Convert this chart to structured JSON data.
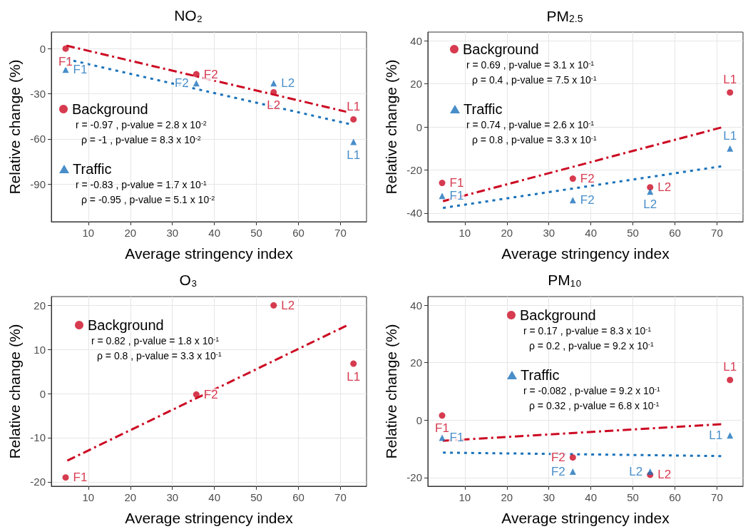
{
  "chart_data": [
    {
      "type": "scatter",
      "title": "NO₂",
      "xlabel": "Average stringency index",
      "ylabel": "Relative change (%)",
      "xlim": [
        1.2,
        76.2
      ],
      "xticks": [
        10,
        20,
        30,
        40,
        50,
        60,
        70
      ],
      "ylim": [
        -115,
        11
      ],
      "yticks": [
        -90,
        -60,
        -30,
        0
      ],
      "grid": true,
      "legend": "left",
      "annotations": [
        "r = -0.97 , p-value = 2.8 x 10$^{-2}$",
        "ρ = -1 , p-value = 8.3 x 10$^{-2}$",
        "r = -0.83 , p-value = 1.7 x 10$^{-1}$",
        "ρ = -0.95 , p-value = 5.1 x 10$^{-2}$"
      ],
      "series": [
        {
          "name": "Background",
          "color": "#cc0a23",
          "marker": "circle",
          "x": [
            4.6,
            35.7,
            54.1,
            73.1
          ],
          "values": [
            0,
            -17,
            -29,
            -47
          ],
          "value_labels": [
            "F1",
            "F2",
            "L2",
            "L1"
          ]
        },
        {
          "name": "Traffic",
          "color": "#1a72bb",
          "marker": "triangle",
          "x": [
            4.6,
            35.7,
            54.1,
            73.1
          ],
          "values": [
            -14,
            -23,
            -23,
            -62
          ],
          "value_labels": [
            "F1",
            "F2",
            "L2",
            "L1"
          ]
        },
        {
          "type": "line",
          "color": "#cc0a23",
          "line_style": "dashed",
          "marker": "none",
          "x": [
            4.8,
            71.5
          ],
          "values": [
            2,
            -42
          ]
        },
        {
          "type": "line",
          "color": "#1a72bb",
          "line_style": "dotted",
          "marker": "none",
          "x": [
            4.8,
            72
          ],
          "values": [
            -7,
            -50
          ]
        }
      ]
    },
    {
      "type": "scatter",
      "title": "PM$_{2.5}$",
      "xlabel": "Average stringency index",
      "ylabel": "Relative change (%)",
      "xlim": [
        1.2,
        76.2
      ],
      "xticks": [
        10,
        20,
        30,
        40,
        50,
        60,
        70
      ],
      "ylim": [
        -44,
        44
      ],
      "yticks": [
        -40,
        -20,
        0,
        20,
        40
      ],
      "grid": true,
      "legend": "top left",
      "annotations": [
        "r = 0.69 , p-value = 3.1 x 10$^{-1}$",
        "ρ = 0.4 , p-value = 7.5 x 10$^{-1}$",
        "r = 0.74 , p-value = 2.6 x 10$^{-1}$",
        "ρ = 0.8 , p-value = 3.3 x 10$^{-1}$"
      ],
      "series": [
        {
          "name": "Background",
          "color": "#cc0a23",
          "marker": "circle",
          "x": [
            4.6,
            35.7,
            54.1,
            73.1
          ],
          "values": [
            -26,
            -24,
            -28,
            16
          ],
          "value_labels": [
            "F1",
            "F2",
            "L2",
            "L1"
          ]
        },
        {
          "name": "Traffic",
          "color": "#1a72bb",
          "marker": "triangle",
          "x": [
            4.6,
            35.7,
            54.1,
            73.1
          ],
          "values": [
            -32,
            -34,
            -30,
            -10
          ],
          "value_labels": [
            "F1",
            "F2",
            "L2",
            "L1"
          ]
        },
        {
          "type": "line",
          "color": "#cc0a23",
          "line_style": "dashed",
          "marker": "none",
          "x": [
            4.8,
            71
          ],
          "values": [
            -34.5,
            -0.3
          ]
        },
        {
          "type": "line",
          "color": "#1a72bb",
          "line_style": "dotted",
          "marker": "none",
          "x": [
            4.8,
            71
          ],
          "values": [
            -37.6,
            -18.3
          ]
        }
      ]
    },
    {
      "type": "scatter",
      "title": "O₃",
      "xlabel": "Average stringency index",
      "ylabel": "Relative change (%)",
      "xlim": [
        1.2,
        76.2
      ],
      "xticks": [
        10,
        20,
        30,
        40,
        50,
        60,
        70
      ],
      "ylim": [
        -21,
        22
      ],
      "yticks": [
        -20,
        -10,
        0,
        10,
        20
      ],
      "grid": true,
      "legend": "top left",
      "annotations": [
        "r = 0.82 , p-value = 1.8 x 10$^{-1}$",
        "ρ = 0.8 , p-value = 3.3 x 10$^{-1}$"
      ],
      "series": [
        {
          "name": "Background",
          "color": "#cc0a23",
          "marker": "circle",
          "x": [
            4.6,
            35.7,
            54.1,
            73.1
          ],
          "values": [
            -19,
            -0.2,
            20,
            6.8
          ],
          "value_labels": [
            "F1",
            "F2",
            "L2",
            "L1"
          ]
        },
        {
          "type": "line",
          "color": "#cc0a23",
          "line_style": "dashed",
          "marker": "none",
          "x": [
            5,
            71.4
          ],
          "values": [
            -15.2,
            15.4
          ]
        }
      ]
    },
    {
      "type": "scatter",
      "title": "PM₁₀",
      "xlabel": "Average stringency index",
      "ylabel": "Relative change (%)",
      "xlim": [
        1.2,
        76.2
      ],
      "xticks": [
        10,
        20,
        30,
        40,
        50,
        60,
        70
      ],
      "ylim": [
        -23,
        43
      ],
      "yticks": [
        -20,
        0,
        20,
        40
      ],
      "grid": true,
      "legend": "top",
      "annotations": [
        "r = 0.17 , p-value = 8.3 x 10$^{-1}$",
        "ρ = 0.2 , p-value = 9.2 x 10$^{-1}$",
        "r = -0.082 , p-value = 9.2 x 10$^{-1}$",
        "ρ = 0.32 , p-value = 6.8 x 10$^{-1}$"
      ],
      "series": [
        {
          "name": "Background",
          "color": "#cc0a23",
          "marker": "circle",
          "x": [
            4.6,
            35.7,
            54.1,
            73.1
          ],
          "values": [
            1.6,
            -13,
            -19,
            14
          ],
          "value_labels": [
            "F1",
            "F2",
            "L2",
            "L1"
          ]
        },
        {
          "name": "Traffic",
          "color": "#1a72bb",
          "marker": "triangle",
          "x": [
            4.6,
            35.7,
            54.1,
            73.1
          ],
          "values": [
            -6.1,
            -17.9,
            -17.9,
            -5.3
          ],
          "value_labels": [
            "F1",
            "F2",
            "L2",
            "L1"
          ]
        },
        {
          "type": "line",
          "color": "#cc0a23",
          "line_style": "dashed",
          "marker": "none",
          "x": [
            4.8,
            71
          ],
          "values": [
            -7.2,
            -1.4
          ]
        },
        {
          "type": "line",
          "color": "#1a72bb",
          "line_style": "dotted",
          "marker": "none",
          "x": [
            4.8,
            71
          ],
          "values": [
            -11.3,
            -12.5
          ]
        }
      ]
    }
  ]
}
